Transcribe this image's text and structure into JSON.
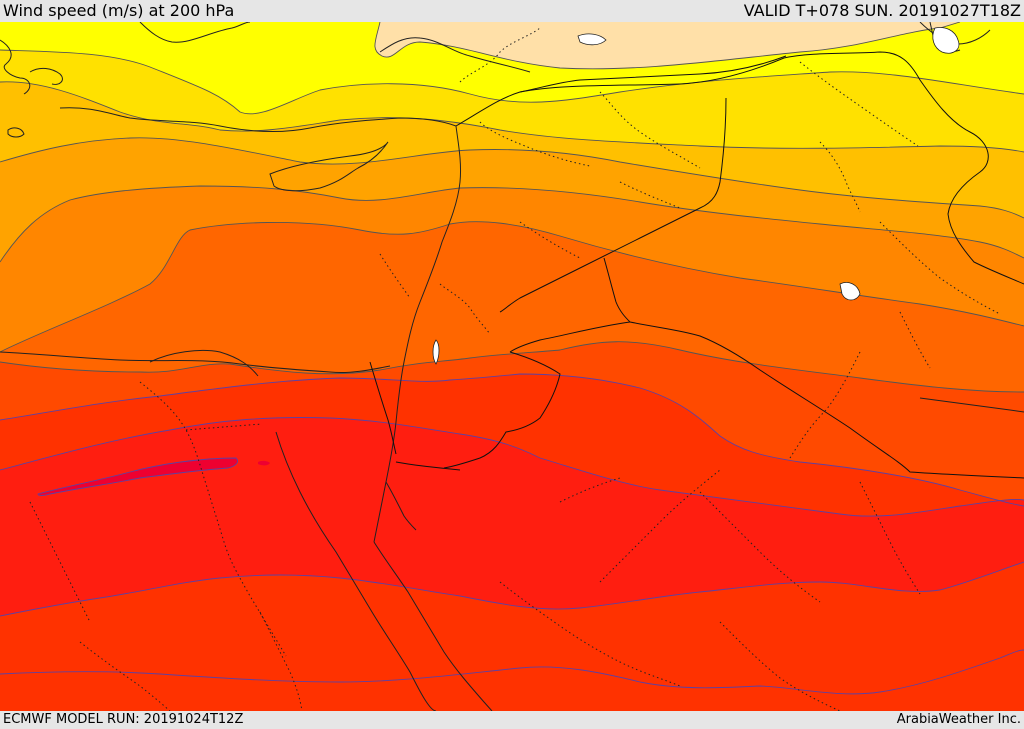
{
  "header": {
    "title": "Wind speed (m/s) at 200 hPa",
    "valid_time": "VALID T+078 SUN. 20191027T18Z"
  },
  "footer": {
    "model_run": "ECMWF MODEL RUN: 20191024T12Z",
    "credit": "ArabiaWeather Inc."
  },
  "map": {
    "variable": "wind speed",
    "units": "m/s",
    "pressure_level_hpa": 200,
    "bands": [
      {
        "level": 1,
        "color": "#ffe0a8"
      },
      {
        "level": 2,
        "color": "#ffff00"
      },
      {
        "level": 3,
        "color": "#ffe100"
      },
      {
        "level": 4,
        "color": "#ffc000"
      },
      {
        "level": 5,
        "color": "#ffa300"
      },
      {
        "level": 6,
        "color": "#ff8600"
      },
      {
        "level": 7,
        "color": "#ff6600"
      },
      {
        "level": 8,
        "color": "#ff4a00"
      },
      {
        "level": 9,
        "color": "#ff3200"
      },
      {
        "level": 10,
        "color": "#ff1e10"
      },
      {
        "level": 11,
        "color": "#ee0030"
      }
    ]
  }
}
